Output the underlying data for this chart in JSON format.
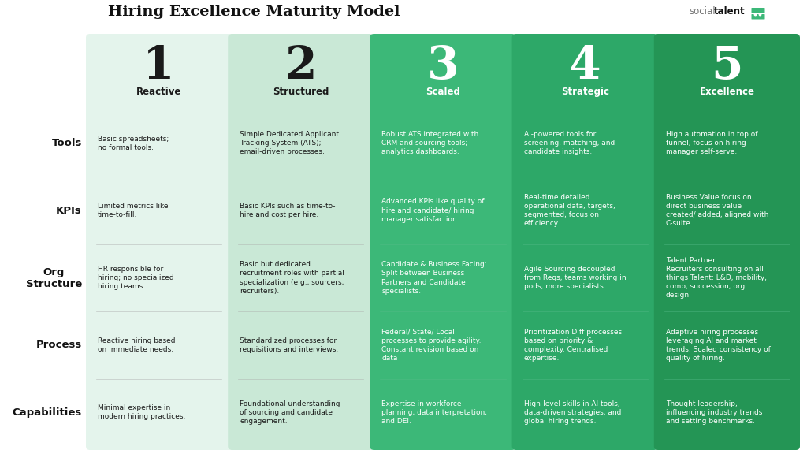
{
  "title": "Hiring Excellence Maturity Model",
  "bg": "#ffffff",
  "levels": [
    {
      "number": "1",
      "name": "Reactive",
      "col_bg": "#e4f4ec",
      "num_color": "#1a1a1a",
      "text_color": "#1a1a1a",
      "name_color": "#1a1a1a"
    },
    {
      "number": "2",
      "name": "Structured",
      "col_bg": "#c9e8d6",
      "num_color": "#1a1a1a",
      "text_color": "#1a1a1a",
      "name_color": "#1a1a1a"
    },
    {
      "number": "3",
      "name": "Scaled",
      "col_bg": "#3cb878",
      "num_color": "#ffffff",
      "text_color": "#ffffff",
      "name_color": "#ffffff"
    },
    {
      "number": "4",
      "name": "Strategic",
      "col_bg": "#2da868",
      "num_color": "#ffffff",
      "text_color": "#ffffff",
      "name_color": "#ffffff"
    },
    {
      "number": "5",
      "name": "Excellence",
      "col_bg": "#249555",
      "num_color": "#ffffff",
      "text_color": "#ffffff",
      "name_color": "#ffffff"
    }
  ],
  "row_labels": [
    "Tools",
    "KPIs",
    "Org\nStructure",
    "Process",
    "Capabilities"
  ],
  "row_label_fontsize": 9.5,
  "content_fontsize": 6.5,
  "content": {
    "Tools": [
      "Basic spreadsheets;\nno formal tools.",
      "Simple Dedicated Applicant\nTracking System (ATS);\nemail-driven processes.",
      "Robust ATS integrated with\nCRM and sourcing tools;\nanalytics dashboards.",
      "AI-powered tools for\nscreening, matching, and\ncandidate insights.",
      "High automation in top of\nfunnel, focus on hiring\nmanager self-serve."
    ],
    "KPIs": [
      "Limited metrics like\ntime-to-fill.",
      "Basic KPIs such as time-to-\nhire and cost per hire.",
      "Advanced KPIs like quality of\nhire and candidate/ hiring\nmanager satisfaction.",
      "Real-time detailed\noperational data, targets,\nsegmented, focus on\nefficiency.",
      "Business Value focus on\ndirect business value\ncreated/ added, aligned with\nC-suite."
    ],
    "Org\nStructure": [
      "HR responsible for\nhiring; no specialized\nhiring teams.",
      "Basic but dedicated\nrecruitment roles with partial\nspecialization (e.g., sourcers,\nrecruiters).",
      "Candidate & Business Facing:\nSplit between Business\nPartners and Candidate\nspecialists.",
      "Agile Sourcing decoupled\nfrom Reqs, teams working in\npods, more specialists.",
      "Talent Partner\nRecruiters consulting on all\nthings Talent: L&D, mobility,\ncomp, succession, org\ndesign."
    ],
    "Process": [
      "Reactive hiring based\non immediate needs.",
      "Standardized processes for\nrequisitions and interviews.",
      "Federal/ State/ Local\nprocesses to provide agility.\nConstant revision based on\ndata",
      "Prioritization Diff processes\nbased on priority &\ncomplexity. Centralised\nexpertise.",
      "Adaptive hiring processes\nleveraging AI and market\ntrends. Scaled consistency of\nquality of hiring."
    ],
    "Capabilities": [
      "Minimal expertise in\nmodern hiring practices.",
      "Foundational understanding\nof sourcing and candidate\nengagement.",
      "Expertise in workforce\nplanning, data interpretation,\nand DEI.",
      "High-level skills in AI tools,\ndata-driven strategies, and\nglobal hiring trends.",
      "Thought leadership,\ninfluencing industry trends\nand setting benchmarks."
    ]
  }
}
